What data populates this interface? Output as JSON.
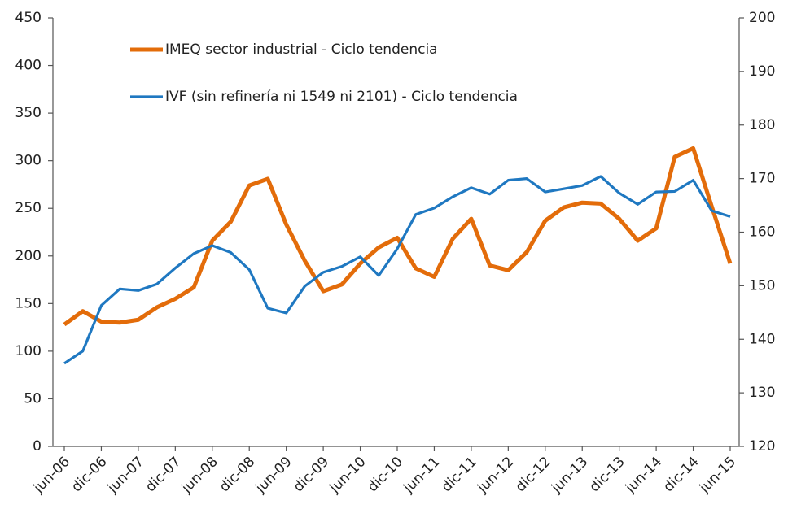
{
  "chart_data": {
    "type": "line",
    "categories": [
      "jun-06",
      null,
      "dic-06",
      null,
      "jun-07",
      null,
      "dic-07",
      null,
      "jun-08",
      null,
      "dic-08",
      null,
      "jun-09",
      null,
      "dic-09",
      null,
      "jun-10",
      null,
      "dic-10",
      null,
      "jun-11",
      null,
      "dic-11",
      null,
      "jun-12",
      null,
      "dic-12",
      null,
      "jun-13",
      null,
      "dic-13",
      null,
      "jun-14",
      null,
      "dic-14",
      null,
      "jun-15"
    ],
    "series": [
      {
        "name": "IMEQ sector industrial - Ciclo tendencia",
        "color": "#e36c0a",
        "axis": "y",
        "values": [
          128,
          142,
          131,
          130,
          133,
          146,
          155,
          167,
          216,
          236,
          274,
          281,
          233,
          195,
          163,
          170,
          192,
          209,
          219,
          187,
          178,
          218,
          239,
          190,
          185,
          204,
          237,
          251,
          256,
          255,
          239,
          216,
          229,
          304,
          313,
          252,
          192
        ]
      },
      {
        "name": "IVF (sin refinería ni 1549 ni 2101) - Ciclo tendencia",
        "color": "#1f78c1",
        "axis": "y2",
        "values": [
          135.5,
          137.8,
          146.3,
          149.4,
          149.1,
          150.3,
          153.3,
          156.0,
          157.5,
          156.2,
          153.0,
          145.8,
          144.9,
          149.9,
          152.5,
          153.6,
          155.4,
          151.9,
          156.9,
          163.3,
          164.5,
          166.6,
          168.3,
          167.1,
          169.7,
          170.0,
          167.5,
          168.1,
          168.7,
          170.4,
          167.3,
          165.2,
          167.5,
          167.6,
          169.7,
          164.0,
          162.9
        ]
      }
    ],
    "ylim": [
      0,
      450
    ],
    "yticks": [
      0,
      50,
      100,
      150,
      200,
      250,
      300,
      350,
      400,
      450
    ],
    "y2lim": [
      120,
      200
    ],
    "y2ticks": [
      120,
      130,
      140,
      150,
      160,
      170,
      180,
      190,
      200
    ]
  }
}
